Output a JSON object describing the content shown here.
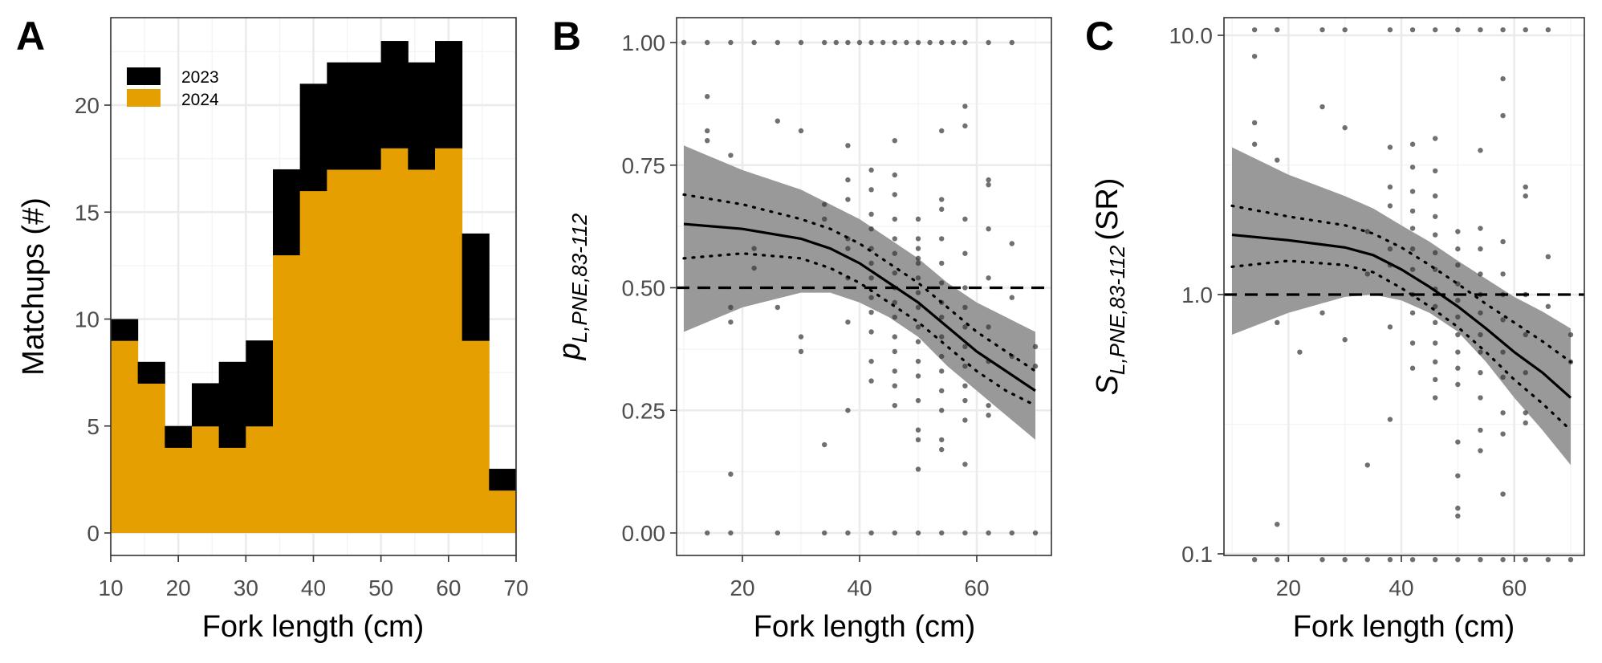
{
  "colors": {
    "year_2023": "#000000",
    "year_2024": "#E69F00",
    "points": "#333333",
    "ribbon": "#999999",
    "fit_line": "#000000",
    "reference_line": "#000000"
  },
  "chart_data": [
    {
      "panel": "A",
      "type": "bar",
      "stacked": true,
      "xlabel": "Fork length (cm)",
      "ylabel": "Matchups (#)",
      "xlim": [
        10,
        70
      ],
      "ylim": [
        0,
        23
      ],
      "x_ticks": [
        "10",
        "20",
        "30",
        "40",
        "50",
        "60",
        "70"
      ],
      "y_ticks": [
        "0",
        "5",
        "10",
        "15",
        "20"
      ],
      "x_tick_values": [
        10,
        20,
        30,
        40,
        50,
        60,
        70
      ],
      "y_tick_values": [
        0,
        5,
        10,
        15,
        20
      ],
      "grid": true,
      "legend_position": "top-left",
      "bin_width": 4,
      "bin_starts": [
        10,
        14,
        18,
        22,
        26,
        30,
        34,
        38,
        42,
        46,
        50,
        54,
        58,
        62,
        66
      ],
      "series": [
        {
          "name": "2024",
          "color": "#E69F00",
          "values": [
            9,
            7,
            4,
            5,
            4,
            5,
            13,
            16,
            17,
            17,
            18,
            17,
            18,
            9,
            2
          ]
        },
        {
          "name": "2023",
          "color": "#000000",
          "values": [
            1,
            1,
            1,
            2,
            4,
            4,
            4,
            5,
            5,
            5,
            5,
            5,
            5,
            5,
            1
          ]
        }
      ],
      "totals": [
        10,
        8,
        5,
        7,
        8,
        9,
        17,
        21,
        22,
        22,
        23,
        22,
        23,
        14,
        3
      ],
      "legend": [
        "2023",
        "2024"
      ]
    },
    {
      "panel": "B",
      "type": "scatter",
      "xlabel": "Fork length (cm)",
      "ylabel_main": "p",
      "ylabel_sub": "L,PNE,83-112",
      "xlim": [
        10,
        70
      ],
      "ylim": [
        0,
        1
      ],
      "x_ticks": [
        "20",
        "40",
        "60"
      ],
      "y_ticks": [
        "0.00",
        "0.25",
        "0.50",
        "0.75",
        "1.00"
      ],
      "x_tick_values": [
        20,
        40,
        60
      ],
      "y_tick_values": [
        0,
        0.25,
        0.5,
        0.75,
        1.0
      ],
      "grid": true,
      "reference_y": 0.5,
      "fit_x": [
        10,
        20,
        30,
        35,
        40,
        45,
        50,
        55,
        60,
        65,
        70
      ],
      "fit_y": [
        0.63,
        0.62,
        0.6,
        0.58,
        0.55,
        0.51,
        0.47,
        0.42,
        0.37,
        0.33,
        0.29
      ],
      "ribbon_lower": [
        0.41,
        0.46,
        0.49,
        0.49,
        0.47,
        0.44,
        0.4,
        0.34,
        0.29,
        0.24,
        0.19
      ],
      "ribbon_upper": [
        0.79,
        0.74,
        0.7,
        0.67,
        0.64,
        0.6,
        0.56,
        0.51,
        0.47,
        0.44,
        0.41
      ],
      "dotted_upper": [
        0.69,
        0.67,
        0.64,
        0.62,
        0.59,
        0.55,
        0.51,
        0.46,
        0.41,
        0.37,
        0.33
      ],
      "dotted_lower": [
        0.56,
        0.57,
        0.56,
        0.54,
        0.51,
        0.47,
        0.43,
        0.38,
        0.33,
        0.29,
        0.26
      ],
      "points_x": [
        10,
        14,
        18,
        22,
        26,
        30,
        34,
        36,
        38,
        40,
        42,
        44,
        46,
        48,
        50,
        52,
        54,
        56,
        58,
        62,
        66,
        14,
        18,
        26,
        34,
        38,
        42,
        46,
        50,
        54,
        58,
        62,
        66,
        70,
        14,
        14,
        14,
        18,
        18,
        18,
        18,
        22,
        26,
        26,
        30,
        30,
        30,
        34,
        34,
        38,
        38,
        38,
        38,
        38,
        38,
        38,
        38,
        42,
        42,
        42,
        42,
        42,
        42,
        42,
        42,
        42,
        42,
        42,
        42,
        46,
        46,
        46,
        46,
        46,
        46,
        46,
        46,
        46,
        46,
        46,
        46,
        46,
        46,
        46,
        50,
        50,
        50,
        50,
        50,
        50,
        50,
        50,
        50,
        50,
        50,
        50,
        50,
        50,
        50,
        50,
        54,
        54,
        54,
        54,
        54,
        54,
        54,
        54,
        54,
        54,
        54,
        54,
        54,
        54,
        54,
        58,
        58,
        58,
        58,
        58,
        58,
        58,
        58,
        58,
        58,
        58,
        58,
        58,
        62,
        62,
        62,
        62,
        62,
        62,
        62,
        62,
        66,
        66,
        66,
        70,
        70,
        34,
        22
      ],
      "points_y": [
        1,
        1,
        1,
        1,
        1,
        1,
        1,
        1,
        1,
        1,
        1,
        1,
        1,
        1,
        1,
        1,
        1,
        1,
        1,
        1,
        1,
        0,
        0,
        0,
        0,
        0,
        0,
        0,
        0,
        0,
        0,
        0,
        0,
        0,
        0.89,
        0.82,
        0.8,
        0.77,
        0.46,
        0.43,
        0.12,
        0.58,
        0.84,
        0.46,
        0.82,
        0.4,
        0.37,
        0.64,
        0.18,
        0.79,
        0.72,
        0.68,
        0.6,
        0.58,
        0.52,
        0.43,
        0.25,
        0.74,
        0.7,
        0.65,
        0.62,
        0.58,
        0.55,
        0.52,
        0.48,
        0.45,
        0.41,
        0.35,
        0.31,
        0.8,
        0.73,
        0.69,
        0.64,
        0.6,
        0.57,
        0.53,
        0.5,
        0.47,
        0.44,
        0.4,
        0.37,
        0.33,
        0.3,
        0.26,
        0.64,
        0.6,
        0.56,
        0.52,
        0.49,
        0.46,
        0.42,
        0.39,
        0.35,
        0.32,
        0.27,
        0.21,
        0.19,
        0.13,
        0.58,
        0.55,
        0.82,
        0.66,
        0.6,
        0.55,
        0.51,
        0.47,
        0.44,
        0.4,
        0.36,
        0.33,
        0.29,
        0.25,
        0.19,
        0.17,
        0.68,
        0.87,
        0.83,
        0.64,
        0.57,
        0.5,
        0.46,
        0.42,
        0.38,
        0.34,
        0.3,
        0.27,
        0.23,
        0.14,
        0.72,
        0.71,
        0.62,
        0.52,
        0.42,
        0.35,
        0.26,
        0.24,
        0.59,
        0.48,
        0.36,
        0.38,
        0.34,
        0.67,
        0.54
      ]
    },
    {
      "panel": "C",
      "type": "scatter",
      "xlabel": "Fork length (cm)",
      "ylabel_main": "S",
      "ylabel_sub": "L,PNE,83-112",
      "ylabel_suffix": "(SR)",
      "y_scale": "log",
      "xlim": [
        10,
        70
      ],
      "ylim": [
        0.1,
        10
      ],
      "x_ticks": [
        "20",
        "40",
        "60"
      ],
      "y_ticks": [
        "0.1",
        "1.0",
        "10.0"
      ],
      "x_tick_values": [
        20,
        40,
        60
      ],
      "y_tick_values": [
        0.1,
        1,
        10
      ],
      "grid": true,
      "reference_y": 1,
      "fit_x": [
        10,
        20,
        30,
        35,
        40,
        45,
        50,
        55,
        60,
        65,
        70
      ],
      "fit_y": [
        1.7,
        1.62,
        1.52,
        1.42,
        1.25,
        1.07,
        0.9,
        0.74,
        0.6,
        0.5,
        0.4
      ],
      "ribbon_lower": [
        0.7,
        0.85,
        0.98,
        1.0,
        0.95,
        0.85,
        0.72,
        0.55,
        0.4,
        0.3,
        0.22
      ],
      "ribbon_upper": [
        3.7,
        2.9,
        2.4,
        2.15,
        1.85,
        1.6,
        1.35,
        1.15,
        0.98,
        0.86,
        0.74
      ],
      "dotted_upper": [
        2.2,
        2.0,
        1.85,
        1.72,
        1.52,
        1.3,
        1.1,
        0.92,
        0.78,
        0.66,
        0.55
      ],
      "dotted_lower": [
        1.28,
        1.35,
        1.3,
        1.22,
        1.06,
        0.9,
        0.75,
        0.6,
        0.47,
        0.38,
        0.3
      ],
      "points_x": [
        14,
        18,
        26,
        30,
        38,
        42,
        46,
        50,
        54,
        58,
        62,
        66,
        14,
        18,
        26,
        30,
        34,
        38,
        42,
        46,
        50,
        54,
        58,
        62,
        66,
        70,
        14,
        14,
        14,
        18,
        18,
        22,
        26,
        26,
        30,
        30,
        34,
        34,
        38,
        38,
        38,
        38,
        38,
        38,
        38,
        42,
        42,
        42,
        42,
        42,
        42,
        42,
        42,
        42,
        42,
        42,
        46,
        46,
        46,
        46,
        46,
        46,
        46,
        46,
        46,
        46,
        46,
        46,
        46,
        46,
        50,
        50,
        50,
        50,
        50,
        50,
        50,
        50,
        50,
        50,
        50,
        50,
        50,
        50,
        54,
        54,
        54,
        54,
        54,
        54,
        54,
        54,
        54,
        54,
        54,
        54,
        58,
        58,
        58,
        58,
        58,
        58,
        58,
        58,
        58,
        58,
        58,
        62,
        62,
        62,
        62,
        62,
        62,
        62,
        66,
        66,
        70,
        70,
        18,
        34
      ],
      "points_y": [
        10.5,
        10.5,
        10.5,
        10.5,
        10.5,
        10.5,
        10.5,
        10.5,
        10.5,
        10.5,
        10.5,
        10.5,
        0.095,
        0.095,
        0.095,
        0.095,
        0.095,
        0.095,
        0.095,
        0.095,
        0.095,
        0.095,
        0.095,
        0.095,
        0.095,
        0.095,
        8.3,
        4.6,
        3.8,
        3.3,
        0.78,
        0.6,
        5.3,
        0.85,
        4.4,
        0.67,
        1.75,
        0.22,
        3.7,
        2.6,
        2.2,
        1.5,
        1.3,
        0.75,
        0.33,
        3.8,
        3.1,
        2.5,
        2.1,
        1.8,
        1.5,
        1.25,
        1.0,
        0.85,
        0.65,
        0.52,
        4.0,
        3.0,
        2.4,
        2.0,
        1.7,
        1.45,
        1.25,
        1.05,
        0.9,
        0.78,
        0.65,
        0.55,
        0.47,
        0.4,
        1.75,
        1.5,
        1.3,
        1.1,
        0.95,
        0.82,
        0.7,
        0.6,
        0.52,
        0.45,
        0.27,
        0.2,
        0.15,
        0.14,
        3.6,
        1.8,
        1.5,
        1.2,
        1.0,
        0.85,
        0.7,
        0.6,
        0.5,
        0.4,
        0.3,
        0.25,
        6.8,
        4.9,
        1.6,
        1.2,
        1.0,
        0.8,
        0.6,
        0.48,
        0.35,
        0.29,
        0.17,
        2.6,
        2.4,
        1.0,
        0.7,
        0.5,
        0.35,
        0.32,
        1.4,
        0.9,
        0.7,
        0.55,
        0.13,
        1.2
      ]
    }
  ]
}
